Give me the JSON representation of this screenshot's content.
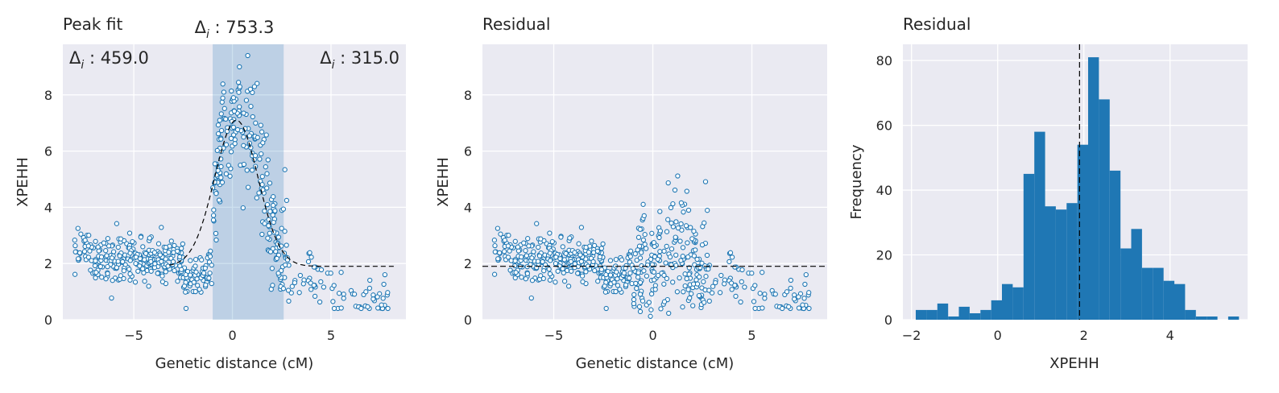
{
  "chart_data": [
    {
      "type": "scatter",
      "title": "Peak fit",
      "xlabel": "Genetic distance (cM)",
      "ylabel": "XPEHH",
      "xlim": [
        -8.6,
        8.8
      ],
      "ylim": [
        0,
        9.8
      ],
      "xticks": [
        -5,
        0,
        5
      ],
      "yticks": [
        0,
        2,
        4,
        6,
        8
      ],
      "tick_labels_x": [
        "−5",
        "0",
        "5"
      ],
      "tick_labels_y": [
        "0",
        "2",
        "4",
        "6",
        "8"
      ],
      "grid": true,
      "peak_region": [
        -1.0,
        2.6
      ],
      "peak_center": 0.2,
      "annotations": [
        {
          "label": "Δ",
          "sub": "i",
          "text": " : 459.0",
          "position": "top-left"
        },
        {
          "label": "Δ",
          "sub": "i",
          "text": " : 753.3",
          "position": "above-center"
        },
        {
          "label": "Δ",
          "sub": "i",
          "text": " : 315.0",
          "position": "top-right"
        }
      ],
      "fit_curve": {
        "baseline": 1.9,
        "amplitude": 5.2,
        "center": 0.2,
        "width": 1.1,
        "style": "dashed",
        "color": "#000000"
      },
      "point_count": 620,
      "point_color": "#1f77b4"
    },
    {
      "type": "scatter",
      "title": "Residual",
      "xlabel": "Genetic distance (cM)",
      "ylabel": "XPEHH",
      "xlim": [
        -8.6,
        8.8
      ],
      "ylim": [
        0,
        9.8
      ],
      "xticks": [
        -5,
        0,
        5
      ],
      "yticks": [
        0,
        2,
        4,
        6,
        8
      ],
      "tick_labels_x": [
        "−5",
        "0",
        "5"
      ],
      "tick_labels_y": [
        "0",
        "2",
        "4",
        "6",
        "8"
      ],
      "grid": true,
      "baseline": 1.9,
      "point_count": 620,
      "point_color": "#1f77b4"
    },
    {
      "type": "bar",
      "title": "Residual",
      "xlabel": "XPEHH",
      "ylabel": "Frequency",
      "xlim": [
        -2.2,
        5.8
      ],
      "ylim": [
        0,
        85
      ],
      "xticks": [
        -2,
        0,
        2,
        4
      ],
      "yticks": [
        0,
        20,
        40,
        60,
        80
      ],
      "tick_labels_x": [
        "−2",
        "0",
        "2",
        "4"
      ],
      "tick_labels_y": [
        "0",
        "20",
        "40",
        "60",
        "80"
      ],
      "grid": true,
      "bin_start": -1.9,
      "bin_width": 0.25,
      "values": [
        3,
        3,
        5,
        1,
        4,
        2,
        3,
        6,
        11,
        10,
        45,
        58,
        35,
        34,
        36,
        54,
        81,
        68,
        46,
        22,
        28,
        16,
        16,
        12,
        11,
        3,
        1,
        1,
        0,
        1
      ],
      "vline": 1.9,
      "bar_color": "#1f77b4"
    }
  ]
}
